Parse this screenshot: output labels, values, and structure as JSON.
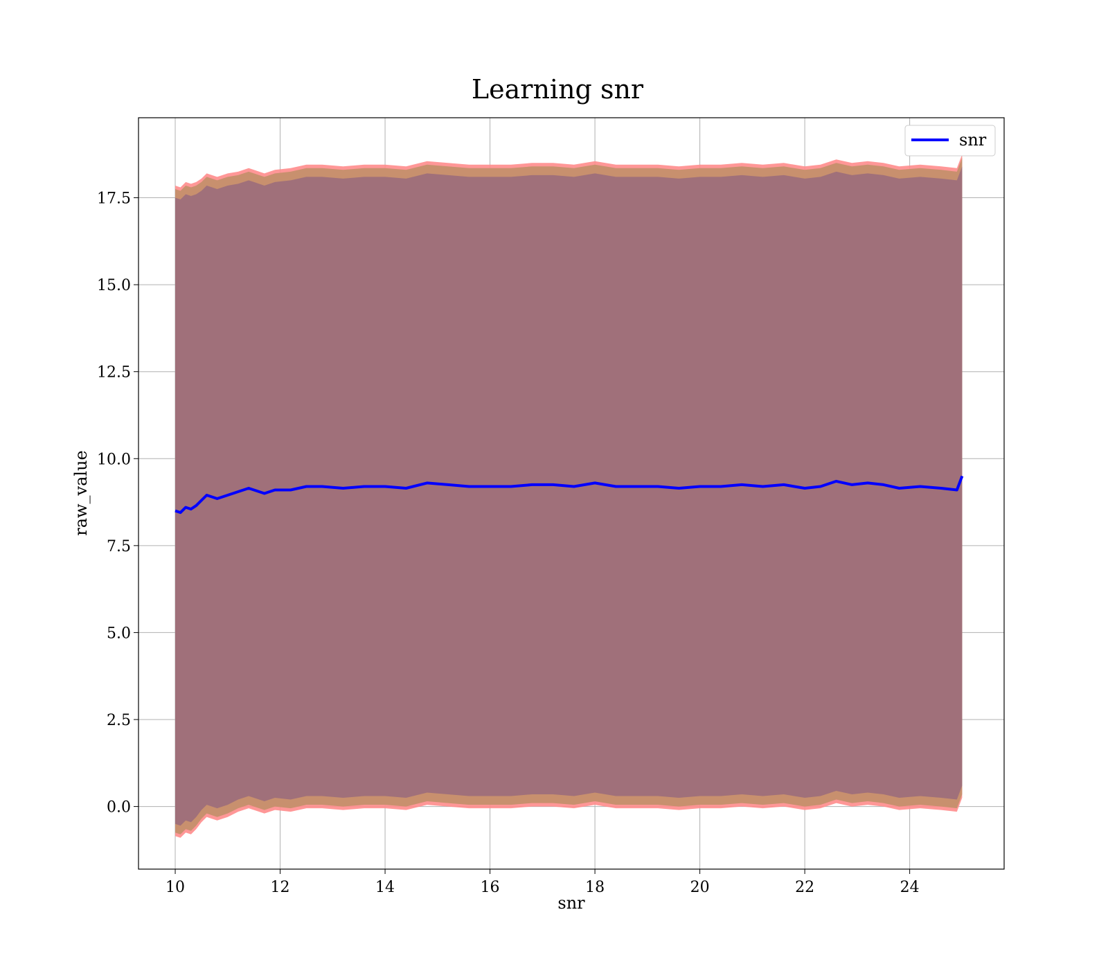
{
  "chart_data": {
    "type": "line",
    "title": "Learning snr",
    "xlabel": "snr",
    "ylabel": "raw_value",
    "xlim": [
      9.3,
      25.8
    ],
    "ylim": [
      -1.8,
      19.8
    ],
    "xticks": [
      10,
      12,
      14,
      16,
      18,
      20,
      22,
      24
    ],
    "yticks": [
      0.0,
      2.5,
      5.0,
      7.5,
      10.0,
      12.5,
      15.0,
      17.5
    ],
    "ytick_labels": [
      "0.0",
      "2.5",
      "5.0",
      "7.5",
      "10.0",
      "12.5",
      "15.0",
      "17.5"
    ],
    "grid": true,
    "legend": {
      "position": "top-right",
      "entries": [
        "snr"
      ]
    },
    "colors": {
      "line": "#0000ff",
      "band_outer": "#ff8c8c",
      "band_mid": "#c8906e",
      "band_inner": "#a0707a",
      "grid": "#b0b0b0"
    },
    "series": [
      {
        "name": "snr",
        "x": [
          10.0,
          10.1,
          10.2,
          10.3,
          10.4,
          10.5,
          10.6,
          10.8,
          11.0,
          11.2,
          11.4,
          11.5,
          11.7,
          11.9,
          12.2,
          12.5,
          12.8,
          13.2,
          13.6,
          14.0,
          14.4,
          14.8,
          15.2,
          15.6,
          16.0,
          16.4,
          16.8,
          17.2,
          17.6,
          18.0,
          18.4,
          18.8,
          19.2,
          19.6,
          20.0,
          20.4,
          20.8,
          21.2,
          21.6,
          22.0,
          22.3,
          22.6,
          22.9,
          23.2,
          23.5,
          23.8,
          24.2,
          24.6,
          24.9,
          25.0
        ],
        "mean": [
          8.5,
          8.45,
          8.6,
          8.55,
          8.65,
          8.8,
          8.95,
          8.85,
          8.95,
          9.05,
          9.15,
          9.1,
          9.0,
          9.1,
          9.1,
          9.2,
          9.2,
          9.15,
          9.2,
          9.2,
          9.15,
          9.3,
          9.25,
          9.2,
          9.2,
          9.2,
          9.25,
          9.25,
          9.2,
          9.3,
          9.2,
          9.2,
          9.2,
          9.15,
          9.2,
          9.2,
          9.25,
          9.2,
          9.25,
          9.15,
          9.2,
          9.35,
          9.25,
          9.3,
          9.25,
          9.15,
          9.2,
          9.15,
          9.1,
          9.5
        ],
        "band_width": [
          9.0,
          9.0,
          9.0,
          9.0,
          8.95,
          8.9,
          8.9,
          8.9,
          8.9,
          8.85,
          8.85,
          8.85,
          8.85,
          8.85,
          8.9,
          8.9,
          8.9,
          8.9,
          8.9,
          8.9,
          8.9,
          8.9,
          8.9,
          8.9,
          8.9,
          8.9,
          8.9,
          8.9,
          8.9,
          8.9,
          8.9,
          8.9,
          8.9,
          8.9,
          8.9,
          8.9,
          8.9,
          8.9,
          8.9,
          8.9,
          8.9,
          8.9,
          8.9,
          8.9,
          8.9,
          8.9,
          8.9,
          8.9,
          8.9,
          8.9
        ]
      }
    ]
  }
}
